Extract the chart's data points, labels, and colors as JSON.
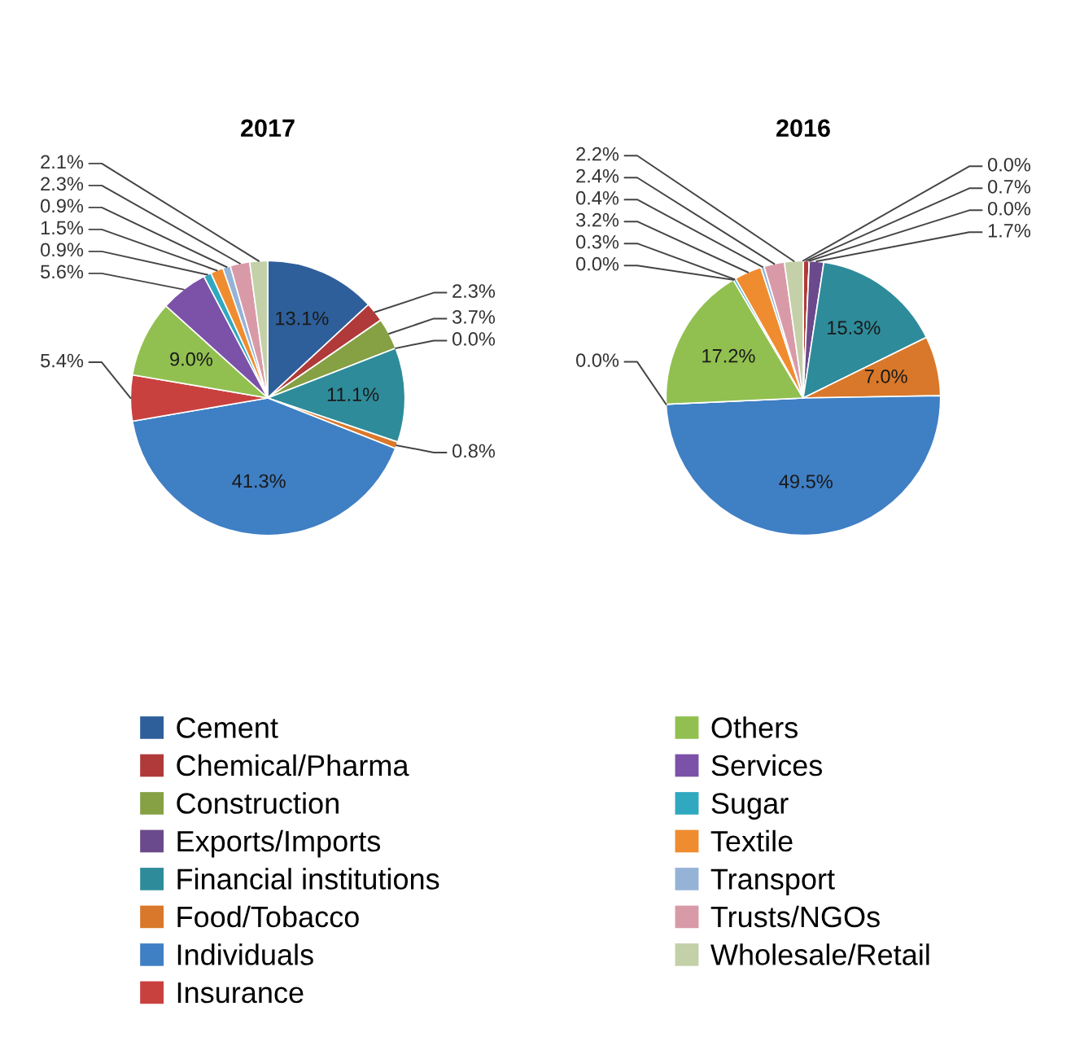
{
  "chart_data": [
    {
      "type": "pie",
      "title": "2017",
      "legend": "bottom",
      "categories": [
        "Cement",
        "Chemical/Pharma",
        "Construction",
        "Exports/Imports",
        "Financial institutions",
        "Food/Tobacco",
        "Individuals",
        "Insurance",
        "Others",
        "Services",
        "Sugar",
        "Textile",
        "Transport",
        "Trusts/NGOs",
        "Wholesale/Retail"
      ],
      "values": [
        13.1,
        2.3,
        3.7,
        0.0,
        11.1,
        0.8,
        41.3,
        5.4,
        9.0,
        5.6,
        0.9,
        1.5,
        0.9,
        2.3,
        2.1
      ],
      "value_labels": [
        "13.1%",
        "2.3%",
        "3.7%",
        "0.0%",
        "11.1%",
        "0.8%",
        "41.3%",
        "5.4%",
        "9.0%",
        "5.6%",
        "0.9%",
        "1.5%",
        "0.9%",
        "2.3%",
        "2.1%"
      ],
      "colors": [
        "#2e5f9a",
        "#b03a3a",
        "#86a044",
        "#6a4a8c",
        "#2e8b9a",
        "#d9782a",
        "#3f7fc4",
        "#c9413f",
        "#92c050",
        "#7b52a8",
        "#2fa8c0",
        "#f08c30",
        "#95b3d7",
        "#d99aa8",
        "#c4d0a8"
      ]
    },
    {
      "type": "pie",
      "title": "2016",
      "values": [
        0.0,
        0.7,
        0.0,
        1.7,
        15.3,
        7.0,
        49.5,
        0.0,
        17.2,
        0.0,
        0.3,
        3.2,
        0.4,
        2.4,
        2.2
      ],
      "value_labels": [
        "0.0%",
        "0.7%",
        "0.0%",
        "1.7%",
        "15.3%",
        "7.0%",
        "49.5%",
        "0.0%",
        "17.2%",
        "0.0%",
        "0.3%",
        "3.2%",
        "0.4%",
        "2.4%",
        "2.2%"
      ],
      "colors": [
        "#2e5f9a",
        "#b03a3a",
        "#86a044",
        "#6a4a8c",
        "#2e8b9a",
        "#d9782a",
        "#3f7fc4",
        "#c9413f",
        "#92c050",
        "#7b52a8",
        "#2fa8c0",
        "#f08c30",
        "#95b3d7",
        "#d99aa8",
        "#c4d0a8"
      ]
    }
  ]
}
